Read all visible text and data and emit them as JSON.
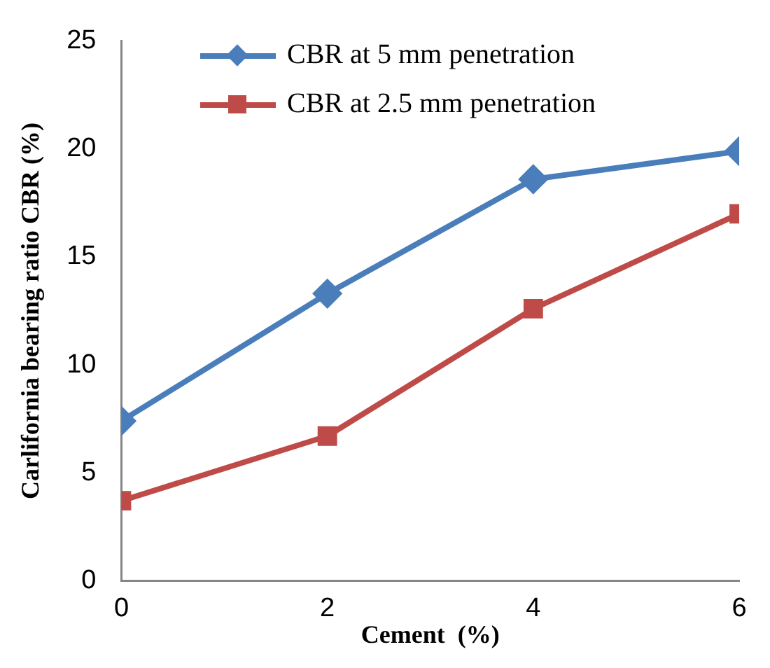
{
  "chart_data": {
    "type": "line",
    "xlabel": "Cement  (%)",
    "ylabel": "Carlifornia bearing ratio CBR (%)",
    "x": [
      0,
      2,
      4,
      6
    ],
    "xlim": [
      0,
      6
    ],
    "xticks": [
      0,
      2,
      4,
      6
    ],
    "ylim": [
      0,
      25
    ],
    "yticks": [
      0,
      5,
      10,
      15,
      20,
      25
    ],
    "grid": false,
    "legend": "top left",
    "line_style": "solid",
    "series": [
      {
        "name": "CBR at 5 mm penetration",
        "color": "#4a7ebb",
        "marker": "diamond",
        "values": [
          7.4,
          13.3,
          18.6,
          19.9
        ]
      },
      {
        "name": "CBR at 2.5 mm penetration",
        "color": "#be4b48",
        "marker": "square",
        "values": [
          3.7,
          6.7,
          12.6,
          17.0
        ]
      }
    ]
  }
}
